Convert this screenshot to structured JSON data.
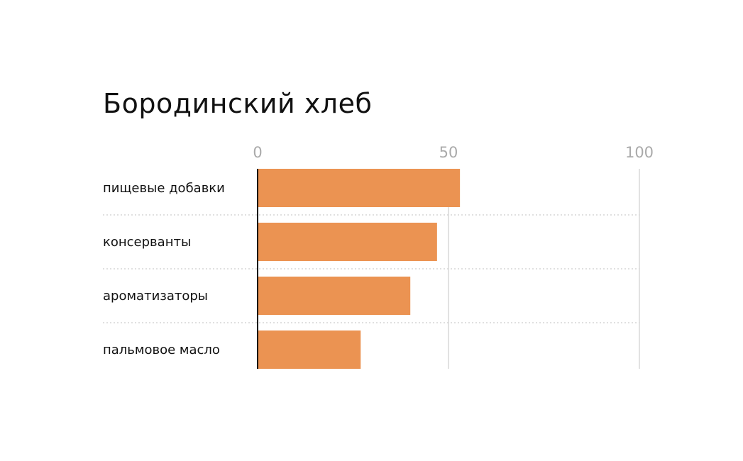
{
  "chart_data": {
    "type": "bar",
    "orientation": "horizontal",
    "title": "Бородинский хлеб",
    "categories": [
      "пищевые добавки",
      "консерванты",
      "ароматизаторы",
      "пальмовое масло"
    ],
    "values": [
      53,
      47,
      40,
      27
    ],
    "xlim": [
      0,
      100
    ],
    "xticks": [
      "0",
      "50",
      "100"
    ],
    "xtick_values": [
      0,
      50,
      100
    ],
    "grid": true,
    "bar_color": "#EB9352",
    "xlabel": "",
    "ylabel": ""
  }
}
